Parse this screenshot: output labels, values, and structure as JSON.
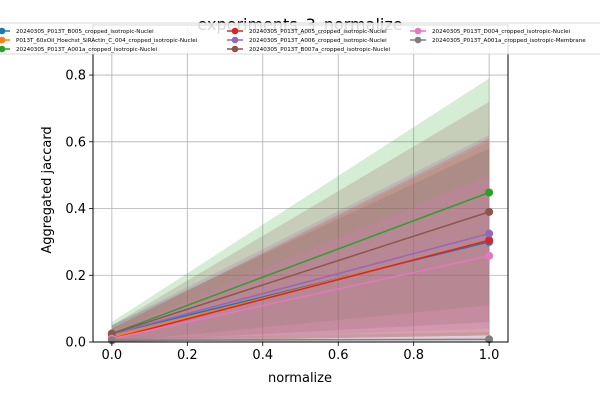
{
  "chart_data": {
    "type": "line",
    "title": "experiments_3_normalize",
    "xlabel": "normalize",
    "ylabel": "Aggregated jaccard",
    "xlim": [
      -0.05,
      1.05
    ],
    "ylim": [
      0.0,
      0.95
    ],
    "xticks": [
      0.0,
      0.2,
      0.4,
      0.6,
      0.8,
      1.0
    ],
    "xtick_labels": [
      "0.0",
      "0.2",
      "0.4",
      "0.6",
      "0.8",
      "1.0"
    ],
    "yticks": [
      0.0,
      0.2,
      0.4,
      0.6,
      0.8
    ],
    "ytick_labels": [
      "0.0",
      "0.2",
      "0.4",
      "0.6",
      "0.8"
    ],
    "grid": true,
    "legend_position": "top",
    "x": [
      0.0,
      1.0
    ],
    "series": [
      {
        "name": "20240305_P013T_B005_cropped_isotropic-Nuclei",
        "color": "#1f77b4",
        "values": [
          0.025,
          0.3
        ],
        "band_low": [
          0.0,
          0.02
        ],
        "band_high": [
          0.05,
          0.58
        ]
      },
      {
        "name": "P013T_60xOil_Hoechst_SiRActin_C_004_cropped_isotropic-Nuclei",
        "color": "#ff7f0e",
        "values": [
          0.015,
          0.305
        ],
        "band_low": [
          0.0,
          0.02
        ],
        "band_high": [
          0.04,
          0.6
        ]
      },
      {
        "name": "20240305_P013T_A001a_cropped_isotropic-Nuclei",
        "color": "#2ca02c",
        "values": [
          0.025,
          0.448
        ],
        "band_low": [
          0.0,
          0.11
        ],
        "band_high": [
          0.06,
          0.79
        ]
      },
      {
        "name": "20240305_P013T_A005_cropped_isotropic-Nuclei",
        "color": "#d62728",
        "values": [
          0.01,
          0.305
        ],
        "band_low": [
          0.0,
          0.02
        ],
        "band_high": [
          0.04,
          0.61
        ]
      },
      {
        "name": "20240305_P013T_A006_cropped_isotropic-Nuclei",
        "color": "#9467bd",
        "values": [
          0.025,
          0.325
        ],
        "band_low": [
          0.0,
          0.04
        ],
        "band_high": [
          0.05,
          0.62
        ]
      },
      {
        "name": "20240305_P013T_B007a_cropped_isotropic-Nuclei",
        "color": "#8c564b",
        "values": [
          0.025,
          0.39
        ],
        "band_low": [
          0.0,
          0.06
        ],
        "band_high": [
          0.05,
          0.72
        ]
      },
      {
        "name": "20240305_P013T_D004_cropped_isotropic-Nuclei",
        "color": "#e377c2",
        "values": [
          0.01,
          0.258
        ],
        "band_low": [
          0.0,
          0.01
        ],
        "band_high": [
          0.03,
          0.5
        ]
      },
      {
        "name": "20240305_P013T_A001a_cropped_isotropic-Membrane",
        "color": "#7f7f7f",
        "values": [
          0.005,
          0.008
        ],
        "band_low": [
          0.0,
          0.0
        ],
        "band_high": [
          0.01,
          0.03
        ]
      }
    ]
  }
}
